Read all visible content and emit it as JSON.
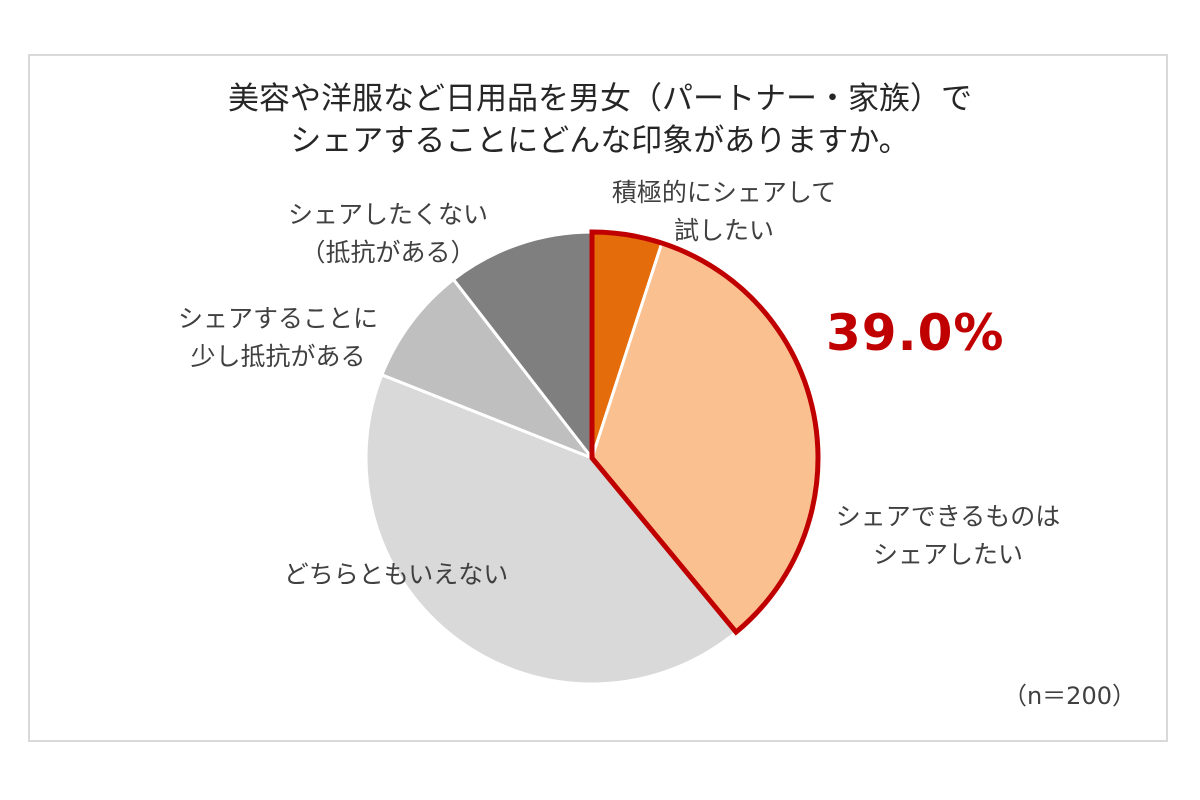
{
  "chart_data": {
    "type": "pie",
    "title_line1": "美容や洋服など日用品を男女（パートナー・家族）で",
    "title_line2": "シェアすることにどんな印象がありますか。",
    "slices": [
      {
        "label_line1": "積極的にシェアして",
        "label_line2": "試したい",
        "value": 5.0,
        "color": "#e46c0a"
      },
      {
        "label_line1": "シェアできるものは",
        "label_line2": "シェアしたい",
        "value": 34.0,
        "color": "#fac090"
      },
      {
        "label_line1": "どちらともいえない",
        "label_line2": "",
        "value": 42.0,
        "color": "#d9d9d9"
      },
      {
        "label_line1": "シェアすることに",
        "label_line2": "少し抵抗がある",
        "value": 8.5,
        "color": "#bfbfbf"
      },
      {
        "label_line1": "シェアしたくない",
        "label_line2": "（抵抗がある）",
        "value": 10.5,
        "color": "#7f7f7f"
      }
    ],
    "highlight": {
      "text": "39.0%",
      "outline_color": "#c00000"
    },
    "note": "（n＝200）"
  }
}
